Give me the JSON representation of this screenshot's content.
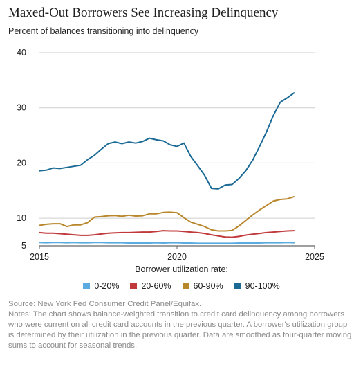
{
  "title": "Maxed-Out Borrowers See Increasing Delinquency",
  "subtitle": "Percent of balances transitioning into delinquency",
  "legend_title": "Borrower utilization rate:",
  "source": "Source: New York Fed Consumer Credit Panel/Equifax.",
  "notes": "Notes: The chart shows balance-weighted transition to credit card delinquency among borrowers who were current on all credit card accounts in the previous quarter. A borrower's utilization group is determined by their utilization in the previous quarter. Data are smoothed as four-quarter moving sums to account for seasonal trends.",
  "chart_data": {
    "type": "line",
    "title": "Maxed-Out Borrowers See Increasing Delinquency",
    "subtitle": "Percent of balances transitioning into delinquency",
    "xlabel": "",
    "ylabel": "",
    "xlim": [
      2015,
      2025
    ],
    "ylim": [
      5,
      40
    ],
    "x_ticks": [
      2015,
      2020,
      2025
    ],
    "x_tick_labels": [
      "2015",
      "2020",
      "2025"
    ],
    "y_ticks": [
      5,
      10,
      20,
      30,
      40
    ],
    "y_tick_labels": [
      "5",
      "10",
      "20",
      "30",
      "40"
    ],
    "grid": "horizontal",
    "legend_position": "bottom",
    "x": [
      2015.0,
      2015.25,
      2015.5,
      2015.75,
      2016.0,
      2016.25,
      2016.5,
      2016.75,
      2017.0,
      2017.25,
      2017.5,
      2017.75,
      2018.0,
      2018.25,
      2018.5,
      2018.75,
      2019.0,
      2019.25,
      2019.5,
      2019.75,
      2020.0,
      2020.25,
      2020.5,
      2020.75,
      2021.0,
      2021.25,
      2021.5,
      2021.75,
      2022.0,
      2022.25,
      2022.5,
      2022.75,
      2023.0,
      2023.25,
      2023.5,
      2023.75,
      2024.0,
      2024.25
    ],
    "series": [
      {
        "name": "0-20%",
        "color": "#5aabe0",
        "values": [
          5.6,
          5.55,
          5.6,
          5.6,
          5.55,
          5.6,
          5.55,
          5.55,
          5.6,
          5.6,
          5.55,
          5.55,
          5.55,
          5.5,
          5.5,
          5.5,
          5.5,
          5.55,
          5.5,
          5.55,
          5.55,
          5.5,
          5.5,
          5.45,
          5.45,
          5.45,
          5.45,
          5.45,
          5.45,
          5.5,
          5.5,
          5.5,
          5.5,
          5.55,
          5.55,
          5.55,
          5.6,
          5.55
        ]
      },
      {
        "name": "20-60%",
        "color": "#c0393b",
        "values": [
          7.4,
          7.3,
          7.3,
          7.2,
          7.1,
          7.0,
          6.9,
          6.9,
          7.0,
          7.15,
          7.3,
          7.35,
          7.4,
          7.4,
          7.45,
          7.5,
          7.5,
          7.6,
          7.75,
          7.7,
          7.7,
          7.6,
          7.5,
          7.4,
          7.25,
          7.0,
          6.8,
          6.6,
          6.55,
          6.7,
          6.95,
          7.1,
          7.25,
          7.4,
          7.5,
          7.6,
          7.7,
          7.75
        ]
      },
      {
        "name": "60-90%",
        "color": "#b8862b",
        "values": [
          8.7,
          8.9,
          9.0,
          9.0,
          8.5,
          8.8,
          8.8,
          9.2,
          10.2,
          10.3,
          10.45,
          10.5,
          10.35,
          10.55,
          10.4,
          10.45,
          10.8,
          10.8,
          11.05,
          11.1,
          11.0,
          10.1,
          9.3,
          8.9,
          8.5,
          7.9,
          7.7,
          7.7,
          7.8,
          8.6,
          9.6,
          10.6,
          11.5,
          12.3,
          13.1,
          13.4,
          13.5,
          13.9
        ]
      },
      {
        "name": "90-100%",
        "color": "#1b6a96",
        "values": [
          18.6,
          18.7,
          19.1,
          19.0,
          19.2,
          19.4,
          19.6,
          20.6,
          21.4,
          22.5,
          23.5,
          23.8,
          23.5,
          23.8,
          23.6,
          23.9,
          24.5,
          24.2,
          24.0,
          23.3,
          23.0,
          23.6,
          21.2,
          19.5,
          17.8,
          15.4,
          15.3,
          16.0,
          16.1,
          17.2,
          18.6,
          20.5,
          23.0,
          25.6,
          28.6,
          31.0,
          31.8,
          32.7
        ]
      }
    ]
  }
}
